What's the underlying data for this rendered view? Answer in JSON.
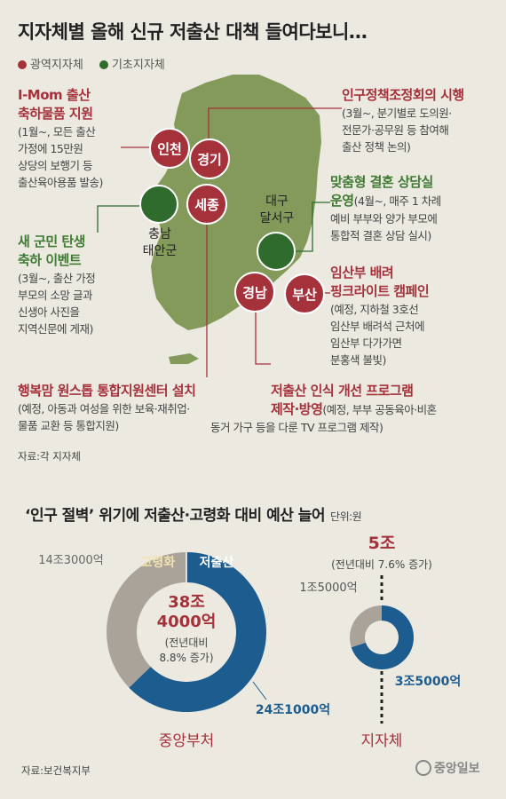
{
  "title": "지자체별 올해 신규 저출산 대책 들여다보니…",
  "legend": {
    "wide": "광역지자체",
    "basic": "기초지자체",
    "wide_color": "#a5323b",
    "basic_color": "#2f6b2c"
  },
  "map_labels": {
    "incheon": "인천",
    "gyeonggi": "경기",
    "sejong": "세종",
    "gyeongnam": "경남",
    "busan": "부산",
    "chungnam_1": "충남",
    "chungnam_2": "태안군",
    "daegu_1": "대구",
    "daegu_2": "달서구"
  },
  "policies": {
    "imom": {
      "h1": "I-Mom 출산",
      "h2": "축하물품 지원",
      "d": [
        "(1월~, 모든 출산",
        "가정에 15만원",
        "상당의 보행기 등",
        "출산육아용품 발송)"
      ]
    },
    "census": {
      "h1": "인구정책조정회의 시행",
      "d": [
        "(3월~, 분기별로 도의원·",
        "전문가·공무원 등 참여해",
        "출산 정책 논의)"
      ]
    },
    "couple": {
      "h1": "맞춤형 결혼 상담실",
      "h2": "운영",
      "d0": "(4월~, 매주 1 차례",
      "d": [
        "예비 부부와 양가 부모에",
        "통합적 결혼 상담 실시)"
      ]
    },
    "newborn": {
      "h1": "새 군민 탄생",
      "h2": "축하 이벤트",
      "d": [
        "(3월~, 출산 가정",
        "부모의 소망 글과",
        "신생아 사진을",
        "지역신문에 게재)"
      ]
    },
    "pink": {
      "h1": "임산부 배려",
      "h2": "핑크라이트 캠페인",
      "d": [
        "(예정, 지하철 3호선",
        "임산부 배려석 근처에",
        "임산부 다가가면",
        "분홍색 불빛)"
      ]
    },
    "mom": {
      "h1": "행복맘 원스톱 통합지원센터 설치",
      "d": [
        "(예정, 아동과 여성을 위한 보육·재취업·",
        "물품 교환 등 통합지원)"
      ]
    },
    "tv": {
      "h1": "저출산 인식 개선 프로그램",
      "h2": "제작·방영",
      "d0": "(예정, 부부 공동육아·비혼",
      "d": [
        "동거 가구 등을 다룬 TV 프로그램 제작)"
      ]
    }
  },
  "source1": "자료:각 지자체",
  "section2": {
    "title": "‘인구 절벽’ 위기에 저출산·고령화 대비 예산 늘어",
    "unit": "단위:원"
  },
  "chart_data": [
    {
      "type": "pie",
      "name": "중앙부처",
      "categories": [
        "저출산",
        "고령화"
      ],
      "values": [
        24.1,
        14.3
      ],
      "value_labels": [
        "24조1000억",
        "14조3000억"
      ],
      "colors": [
        "#1c5c8e",
        "#aaa39a"
      ],
      "total_label_1": "38조",
      "total_label_2": "4000억",
      "total_note_1": "(전년대비",
      "total_note_2": "8.8% 증가)"
    },
    {
      "type": "pie",
      "name": "지자체",
      "categories": [
        "저출산",
        "고령화"
      ],
      "values": [
        3.5,
        1.5
      ],
      "value_labels": [
        "3조5000억",
        "1조5000억"
      ],
      "colors": [
        "#1c5c8e",
        "#aaa39a"
      ],
      "total_label": "5조",
      "total_note": "(전년대비 7.6% 증가)"
    }
  ],
  "source2": "자료:보건복지부",
  "brand": "중앙일보"
}
